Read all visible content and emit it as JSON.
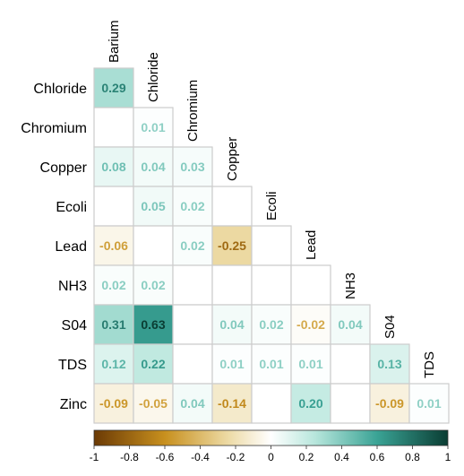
{
  "chart_data": {
    "type": "heatmap",
    "subtype": "lower-triangular-correlation",
    "columns": [
      "Barium",
      "Chloride",
      "Chromium",
      "Copper",
      "Ecoli",
      "Lead",
      "NH3",
      "S04",
      "TDS"
    ],
    "rows": [
      "Chloride",
      "Chromium",
      "Copper",
      "Ecoli",
      "Lead",
      "NH3",
      "S04",
      "TDS",
      "Zinc"
    ],
    "values": [
      [
        0.29
      ],
      [
        0.0,
        0.01
      ],
      [
        0.08,
        0.04,
        0.03
      ],
      [
        0.0,
        0.05,
        0.02,
        0.0
      ],
      [
        -0.06,
        0.0,
        0.02,
        -0.25,
        0.0
      ],
      [
        0.02,
        0.02,
        0.0,
        0.0,
        0.0,
        0.0
      ],
      [
        0.31,
        0.63,
        0.0,
        0.04,
        0.02,
        -0.02,
        0.04
      ],
      [
        0.12,
        0.22,
        0.0,
        0.01,
        0.01,
        0.01,
        0.0,
        0.13
      ],
      [
        -0.09,
        -0.05,
        0.04,
        -0.14,
        0.0,
        0.2,
        0.0,
        -0.09,
        0.01
      ]
    ],
    "value_labels": [
      [
        "0.29"
      ],
      [
        "",
        "0.01"
      ],
      [
        "0.08",
        "0.04",
        "0.03"
      ],
      [
        "",
        "0.05",
        "0.02",
        ""
      ],
      [
        "-0.06",
        "",
        "0.02",
        "-0.25",
        ""
      ],
      [
        "0.02",
        "0.02",
        "",
        "",
        "",
        ""
      ],
      [
        "0.31",
        "0.63",
        "",
        "0.04",
        "0.02",
        "-0.02",
        "0.04"
      ],
      [
        "0.12",
        "0.22",
        "",
        "0.01",
        "0.01",
        "0.01",
        "",
        "0.13"
      ],
      [
        "-0.09",
        "-0.05",
        "0.04",
        "-0.14",
        "",
        "0.20",
        "",
        "-0.09",
        "0.01"
      ]
    ],
    "color_scale": {
      "range": [
        -1,
        1
      ],
      "ticks": [
        "-1",
        "-0.8",
        "-0.6",
        "-0.4",
        "-0.2",
        "0",
        "0.2",
        "0.4",
        "0.6",
        "0.8",
        "1"
      ],
      "stops": [
        {
          "value": -1,
          "color": "#6b3a05"
        },
        {
          "value": -0.6,
          "color": "#c8901e"
        },
        {
          "value": -0.25,
          "color": "#ecd9a2"
        },
        {
          "value": 0,
          "color": "#ffffff"
        },
        {
          "value": 0.25,
          "color": "#b7e6dc"
        },
        {
          "value": 0.6,
          "color": "#3aa395"
        },
        {
          "value": 1,
          "color": "#0a3d33"
        }
      ]
    },
    "legend_position": "bottom",
    "grid_color": "#cccccc"
  }
}
